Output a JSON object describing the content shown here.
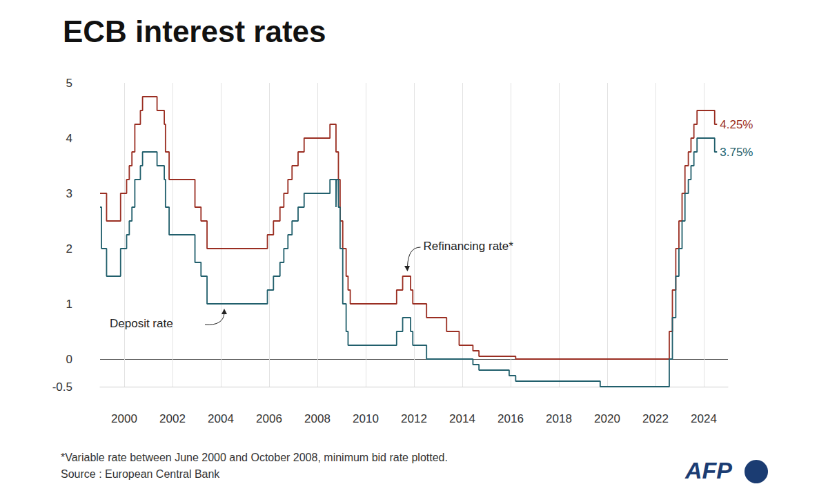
{
  "chart_data": {
    "type": "step",
    "title": "ECB interest rates",
    "x": [
      1999.0,
      1999.06,
      1999.27,
      1999.85,
      2000.1,
      2000.21,
      2000.32,
      2000.44,
      2000.67,
      2000.76,
      2001.36,
      2001.66,
      2001.71,
      2001.86,
      2002.93,
      2003.18,
      2003.43,
      2005.93,
      2006.18,
      2006.45,
      2006.61,
      2006.78,
      2006.95,
      2007.2,
      2007.45,
      2008.52,
      2008.77,
      2008.79,
      2008.87,
      2008.94,
      2009.05,
      2009.19,
      2009.27,
      2009.36,
      2011.28,
      2011.53,
      2011.86,
      2011.95,
      2012.52,
      2013.35,
      2013.87,
      2014.44,
      2014.69,
      2015.94,
      2016.21,
      2019.71,
      2022.57,
      2022.7,
      2022.84,
      2022.97,
      2023.1,
      2023.22,
      2023.36,
      2023.47,
      2023.59,
      2023.72,
      2024.45,
      2024.55
    ],
    "series": [
      {
        "name": "Refinancing rate*",
        "color": "#9a2e22",
        "values": [
          3,
          3,
          2.5,
          3,
          3.25,
          3.5,
          3.75,
          4.25,
          4.5,
          4.75,
          4.5,
          4.25,
          3.75,
          3.25,
          2.75,
          2.5,
          2,
          2.25,
          2.5,
          2.75,
          3,
          3.25,
          3.5,
          3.75,
          4,
          4.25,
          3.75,
          3.75,
          3.25,
          2.5,
          2,
          1.5,
          1.25,
          1,
          1.25,
          1.5,
          1.25,
          1,
          0.75,
          0.5,
          0.25,
          0.15,
          0.05,
          0.05,
          0,
          0,
          0.5,
          1.25,
          2,
          2.5,
          3,
          3.5,
          3.75,
          4,
          4.25,
          4.5,
          4.25,
          4.25
        ],
        "value_labels": [
          null,
          null,
          null,
          null,
          null,
          null,
          null,
          null,
          null,
          null,
          null,
          null,
          null,
          null,
          null,
          null,
          null,
          null,
          null,
          null,
          null,
          null,
          null,
          null,
          null,
          null,
          null,
          null,
          null,
          null,
          null,
          null,
          null,
          null,
          null,
          null,
          null,
          null,
          null,
          null,
          null,
          null,
          null,
          null,
          null,
          null,
          null,
          null,
          null,
          null,
          null,
          null,
          null,
          null,
          null,
          null,
          null,
          "4.25%"
        ]
      },
      {
        "name": "Deposit rate",
        "color": "#215f6c",
        "values": [
          2.75,
          2,
          1.5,
          2,
          2.25,
          2.5,
          2.75,
          3.25,
          3.5,
          3.75,
          3.5,
          3.25,
          2.75,
          2.25,
          1.75,
          1.5,
          1,
          1.25,
          1.5,
          1.75,
          2,
          2.25,
          2.5,
          2.75,
          3,
          3.25,
          2.75,
          3.25,
          2.75,
          2,
          1,
          0.5,
          0.25,
          0.25,
          0.5,
          0.75,
          0.5,
          0.25,
          0,
          0,
          0,
          -0.1,
          -0.2,
          -0.3,
          -0.4,
          -0.5,
          0,
          0.75,
          1.5,
          2,
          2.5,
          3,
          3.25,
          3.5,
          3.75,
          4,
          3.75,
          3.75
        ],
        "value_labels": [
          null,
          null,
          null,
          null,
          null,
          null,
          null,
          null,
          null,
          null,
          null,
          null,
          null,
          null,
          null,
          null,
          null,
          null,
          null,
          null,
          null,
          null,
          null,
          null,
          null,
          null,
          null,
          null,
          null,
          null,
          null,
          null,
          null,
          null,
          null,
          null,
          null,
          null,
          null,
          null,
          null,
          null,
          null,
          null,
          null,
          null,
          null,
          null,
          null,
          null,
          null,
          null,
          null,
          null,
          null,
          null,
          null,
          "3.75%"
        ]
      }
    ],
    "annotations": [
      {
        "text": "Refinancing rate*",
        "x": 2011.7,
        "y": 1.5
      },
      {
        "text": "Deposit rate",
        "x": 2004.2,
        "y": 1
      }
    ],
    "xlim": [
      1999,
      2025
    ],
    "xticks": [
      2000,
      2002,
      2004,
      2006,
      2008,
      2010,
      2012,
      2014,
      2016,
      2018,
      2020,
      2022,
      2024
    ],
    "ylim": [
      -0.5,
      5
    ],
    "yticks": [
      -0.5,
      0,
      1,
      2,
      3,
      4,
      5
    ],
    "grid": true,
    "notes": [
      "*Variable rate between June 2000 and October 2008, minimum bid rate plotted.",
      "Source : European Central Bank"
    ],
    "logo": "AFP"
  }
}
